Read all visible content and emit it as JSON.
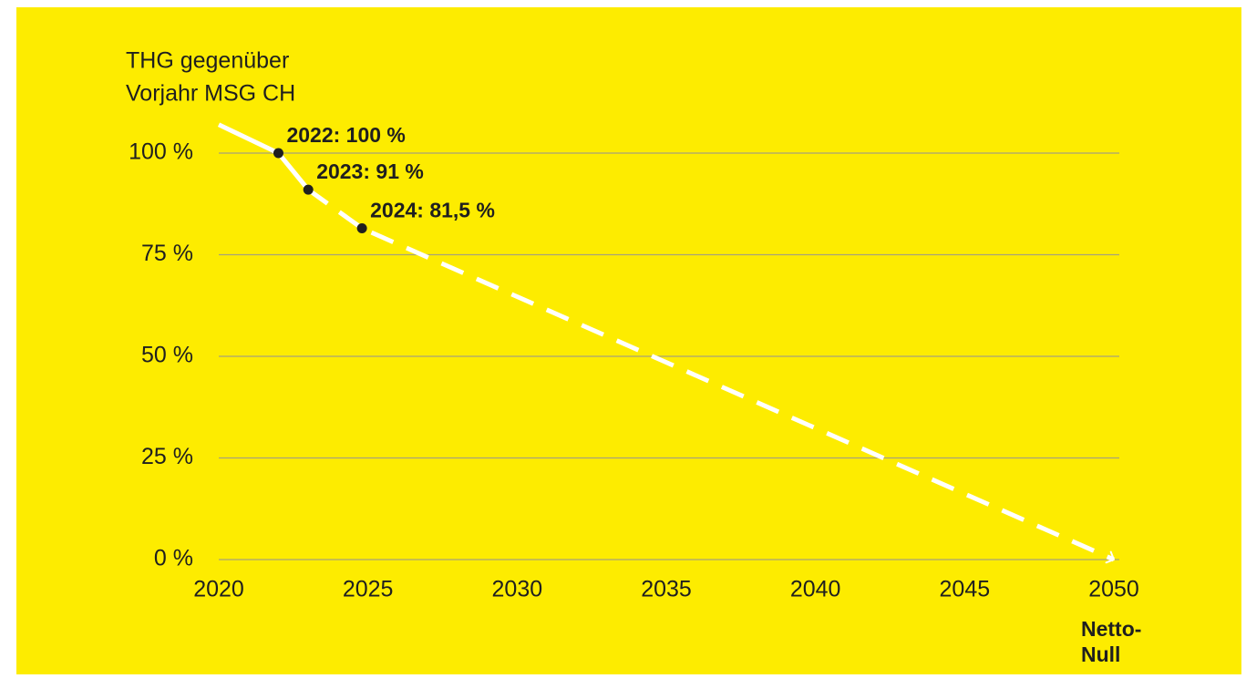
{
  "chart_data": {
    "type": "line",
    "ylabel": [
      "THG gegenüber",
      "Vorjahr MSG CH"
    ],
    "xlim": [
      2020,
      2050
    ],
    "ylim": [
      0,
      100
    ],
    "xticks": [
      2020,
      2025,
      2030,
      2035,
      2040,
      2045,
      2050
    ],
    "yticks": [
      {
        "value": 0,
        "label": "0 %"
      },
      {
        "value": 25,
        "label": "25 %"
      },
      {
        "value": 50,
        "label": "50 %"
      },
      {
        "value": 75,
        "label": "75 %"
      },
      {
        "value": 100,
        "label": "100 %"
      }
    ],
    "grid": true,
    "series": [
      {
        "color": "#ffffff",
        "style": "solid",
        "x": [
          2020,
          2022,
          2023
        ],
        "values": [
          107,
          100,
          91
        ]
      },
      {
        "color": "#ffffff",
        "style": "dashed",
        "arrow": true,
        "x": [
          2023,
          2024.8,
          2050
        ],
        "values": [
          91,
          81.5,
          0
        ]
      }
    ],
    "points": {
      "color": "#1f1f1f",
      "x": [
        2022,
        2023,
        2024.8
      ],
      "values": [
        100,
        91,
        81.5
      ],
      "labels": [
        "2022: 100 %",
        "2023: 91 %",
        "2024: 81,5 %"
      ]
    },
    "end_label": [
      "Netto-",
      "Null"
    ],
    "background": "#fdec00"
  }
}
